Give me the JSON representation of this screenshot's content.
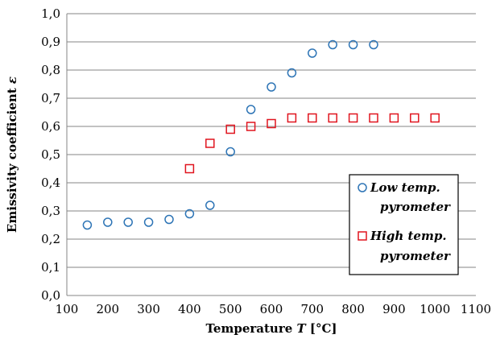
{
  "chart_data": {
    "type": "scatter",
    "title": "",
    "xlabel_main": "Temperature ",
    "xlabel_var": "T",
    "xlabel_unit": " [°C]",
    "ylabel_main": "Emissivity coefficient ",
    "ylabel_var": "ε",
    "xlim": [
      100,
      1100
    ],
    "ylim": [
      0.0,
      1.0
    ],
    "x_ticks": [
      "100",
      "200",
      "300",
      "400",
      "500",
      "600",
      "700",
      "800",
      "900",
      "1000",
      "1100"
    ],
    "y_ticks": [
      "0,0",
      "0,1",
      "0,2",
      "0,3",
      "0,4",
      "0,5",
      "0,6",
      "0,7",
      "0,8",
      "0,9",
      "1,0"
    ],
    "grid": "horizontal",
    "legend_position": "bottom-right",
    "series": [
      {
        "name_line1": "Low temp.",
        "name_line2": "pyrometer",
        "marker": "circle",
        "color": "#2e75b6",
        "x": [
          150,
          200,
          250,
          300,
          350,
          400,
          450,
          500,
          550,
          600,
          650,
          700,
          750,
          800,
          850
        ],
        "y": [
          0.25,
          0.26,
          0.26,
          0.26,
          0.27,
          0.29,
          0.32,
          0.51,
          0.66,
          0.74,
          0.79,
          0.86,
          0.89,
          0.89,
          0.89
        ]
      },
      {
        "name_line1": "High temp.",
        "name_line2": "pyrometer",
        "marker": "square",
        "color": "#e0141e",
        "x": [
          400,
          450,
          500,
          550,
          600,
          650,
          700,
          750,
          800,
          850,
          900,
          950,
          1000
        ],
        "y": [
          0.45,
          0.54,
          0.59,
          0.6,
          0.61,
          0.63,
          0.63,
          0.63,
          0.63,
          0.63,
          0.63,
          0.63,
          0.63
        ]
      }
    ]
  }
}
